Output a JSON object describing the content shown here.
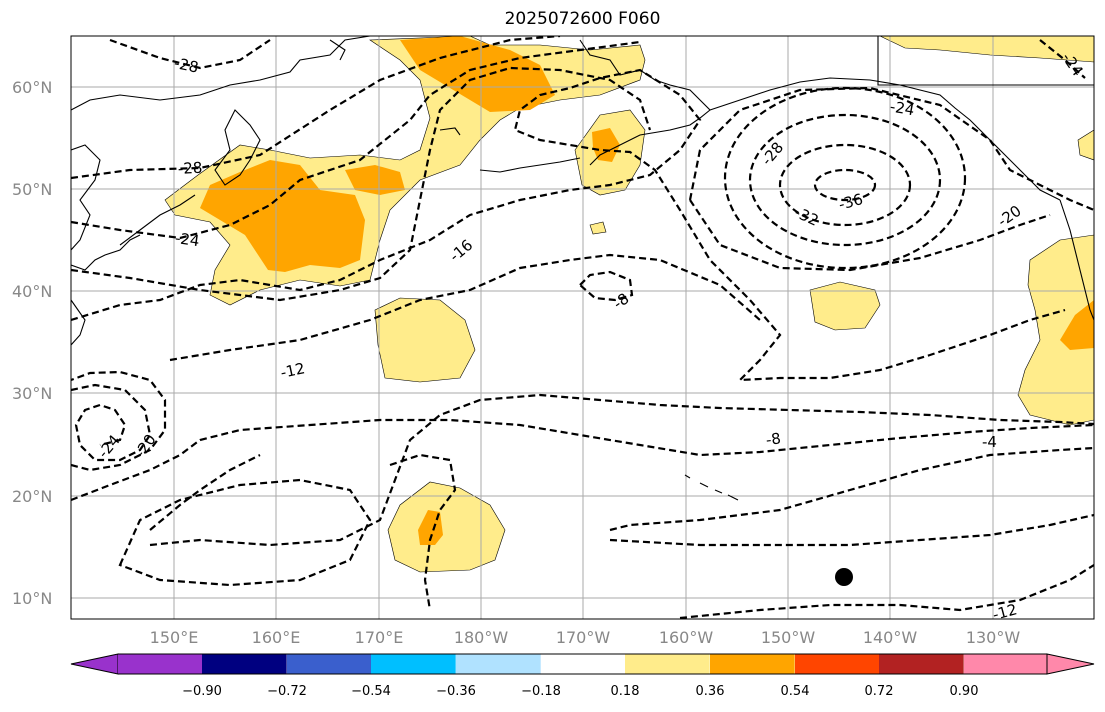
{
  "title": "2025072600 F060",
  "map": {
    "lat_labels": [
      "60°N",
      "50°N",
      "40°N",
      "30°N",
      "20°N",
      "10°N"
    ],
    "lon_labels": [
      "150°E",
      "160°E",
      "170°E",
      "180°W",
      "170°W",
      "160°W",
      "150°W",
      "140°W",
      "130°W"
    ],
    "contour_labels": [
      "-28",
      "-28",
      "-24",
      "-16",
      "-12",
      "-8",
      "-8",
      "-4",
      "-12",
      "-20",
      "-24",
      "-24",
      "-28",
      "-32",
      "-36",
      "-20",
      "-24"
    ],
    "marker": "storm-center-dot"
  },
  "colorbar": {
    "ticks": [
      "−0.90",
      "−0.72",
      "−0.54",
      "−0.36",
      "−0.18",
      "0.18",
      "0.36",
      "0.54",
      "0.72",
      "0.90"
    ],
    "colors": [
      "#9932cc",
      "#000080",
      "#3a5fcd",
      "#00bfff",
      "#b0e2ff",
      "#ffffff",
      "#ffec8b",
      "#ffa500",
      "#ff4500",
      "#b22222",
      "#ff88aa"
    ]
  },
  "colors": {
    "fill_low": "#ffec8b",
    "fill_mid": "#ffa500",
    "fill_high": "#ff8c00",
    "grid": "#aaaaaa",
    "land_outline": "#000000"
  }
}
